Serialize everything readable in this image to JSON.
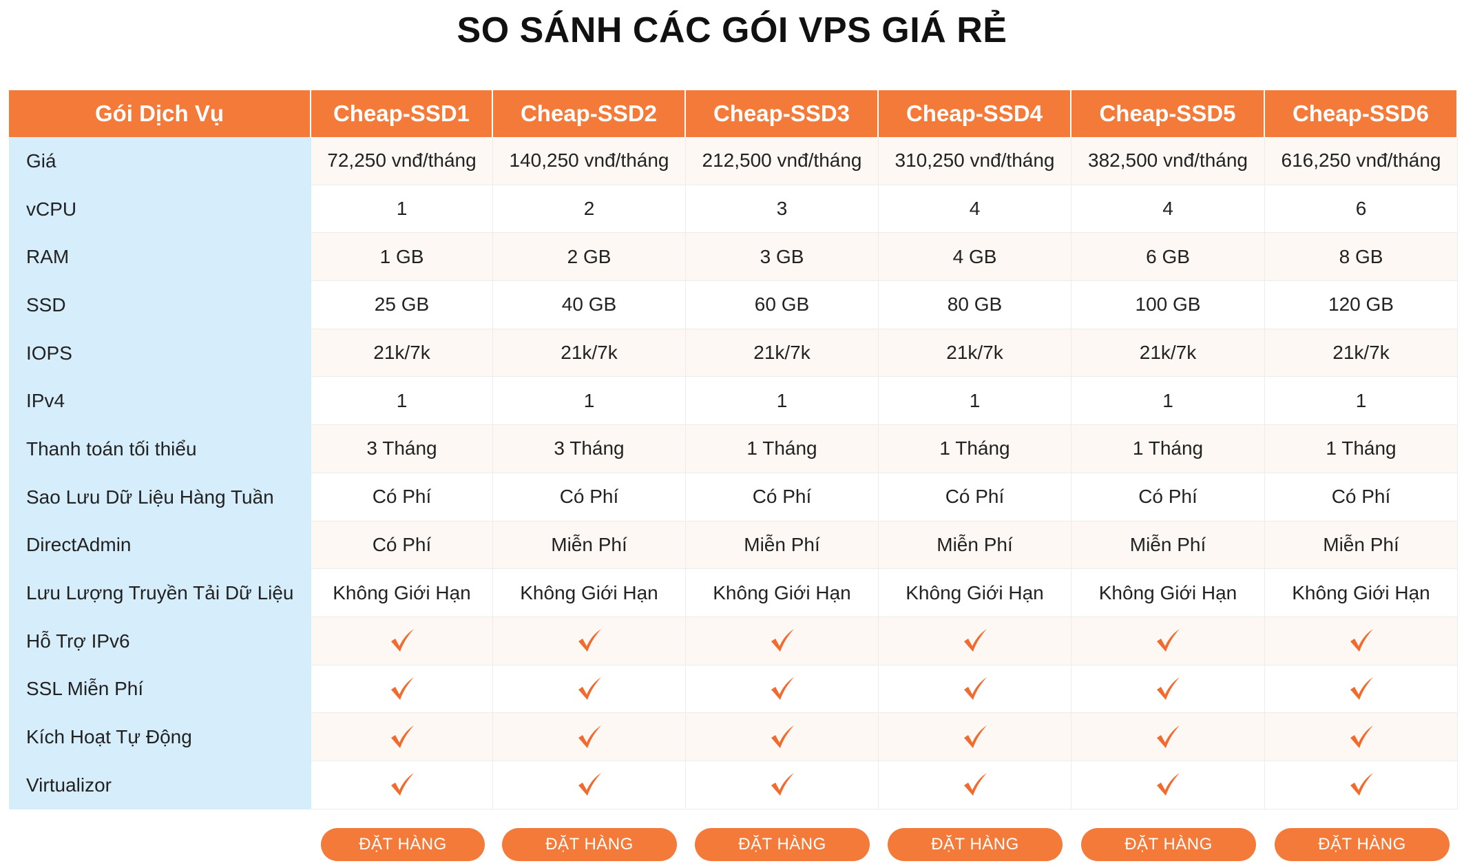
{
  "title": "SO SÁNH CÁC GÓI VPS GIÁ RẺ",
  "header": {
    "label": "Gói Dịch Vụ",
    "plans": [
      "Cheap-SSD1",
      "Cheap-SSD2",
      "Cheap-SSD3",
      "Cheap-SSD4",
      "Cheap-SSD5",
      "Cheap-SSD6"
    ]
  },
  "rows": [
    {
      "label": "Giá",
      "values": [
        "72,250 vnđ/tháng",
        "140,250 vnđ/tháng",
        "212,500 vnđ/tháng",
        "310,250 vnđ/tháng",
        "382,500 vnđ/tháng",
        "616,250 vnđ/tháng"
      ]
    },
    {
      "label": "vCPU",
      "values": [
        "1",
        "2",
        "3",
        "4",
        "4",
        "6"
      ]
    },
    {
      "label": "RAM",
      "values": [
        "1 GB",
        "2 GB",
        "3 GB",
        "4 GB",
        "6 GB",
        "8 GB"
      ]
    },
    {
      "label": "SSD",
      "values": [
        "25 GB",
        "40 GB",
        "60 GB",
        "80 GB",
        "100 GB",
        "120 GB"
      ]
    },
    {
      "label": "IOPS",
      "values": [
        "21k/7k",
        "21k/7k",
        "21k/7k",
        "21k/7k",
        "21k/7k",
        "21k/7k"
      ]
    },
    {
      "label": "IPv4",
      "values": [
        "1",
        "1",
        "1",
        "1",
        "1",
        "1"
      ]
    },
    {
      "label": "Thanh toán tối thiểu",
      "values": [
        "3 Tháng",
        "3 Tháng",
        "1 Tháng",
        "1 Tháng",
        "1 Tháng",
        "1 Tháng"
      ]
    },
    {
      "label": "Sao Lưu Dữ Liệu Hàng Tuần",
      "values": [
        "Có Phí",
        "Có Phí",
        "Có Phí",
        "Có Phí",
        "Có Phí",
        "Có Phí"
      ]
    },
    {
      "label": "DirectAdmin",
      "values": [
        "Có Phí",
        "Miễn Phí",
        "Miễn Phí",
        "Miễn Phí",
        "Miễn Phí",
        "Miễn Phí"
      ]
    },
    {
      "label": "Lưu Lượng Truyền Tải Dữ Liệu",
      "values": [
        "Không Giới Hạn",
        "Không Giới Hạn",
        "Không Giới Hạn",
        "Không Giới Hạn",
        "Không Giới Hạn",
        "Không Giới Hạn"
      ]
    },
    {
      "label": "Hỗ Trợ IPv6",
      "values": [
        "check",
        "check",
        "check",
        "check",
        "check",
        "check"
      ]
    },
    {
      "label": "SSL Miễn Phí",
      "values": [
        "check",
        "check",
        "check",
        "check",
        "check",
        "check"
      ]
    },
    {
      "label": "Kích Hoạt Tự Động",
      "values": [
        "check",
        "check",
        "check",
        "check",
        "check",
        "check"
      ]
    },
    {
      "label": "Virtualizor",
      "values": [
        "check",
        "check",
        "check",
        "check",
        "check",
        "check"
      ]
    }
  ],
  "order_button_label": "ĐẶT HÀNG",
  "colors": {
    "accent": "#f47a3a",
    "label_column": "#d6edfb",
    "row_alt": "#fdf8f3"
  },
  "icons": {
    "check": "checkmark-icon"
  }
}
